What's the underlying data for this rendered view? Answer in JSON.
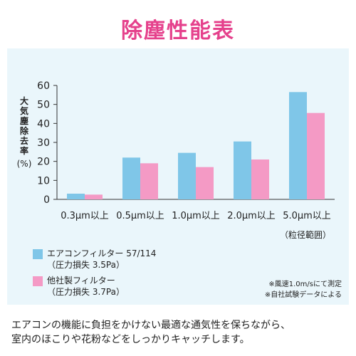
{
  "title": "除塵性能表",
  "ylabel": "大気塵除去率(%)",
  "legend": {
    "series1_line1": "エアコンフィルター 57/114",
    "series1_line2": "（圧力損失 3.5Pa）",
    "series2_line1": "他社製フィルター",
    "series2_line2": "（圧力損失 3.7Pa）"
  },
  "notes": {
    "note1": "※風速1.0m/sにて測定",
    "note2": "※自社試験データによる"
  },
  "caption_line1": "エアコンの機能に負担をかけない最適な通気性を保ちながら、",
  "caption_line2": "室内のほこりや花粉などをしっかりキャッチします。",
  "colors": {
    "series1": "#7fc6e8",
    "series2": "#f49ac5",
    "title": "#e5418c",
    "panel": "#eaf6fb"
  },
  "chart_data": {
    "type": "bar",
    "title": "除塵性能表",
    "ylabel": "大気塵除去率(%)",
    "xlabel_note": "（粒径範囲）",
    "categories": [
      "0.3μm以上",
      "0.5μm以上",
      "1.0μm以上",
      "2.0μm以上",
      "5.0μm以上"
    ],
    "series": [
      {
        "name": "エアコンフィルター 57/114（圧力損失 3.5Pa）",
        "values": [
          3,
          22,
          24.5,
          30.5,
          56.5
        ]
      },
      {
        "name": "他社製フィルター（圧力損失 3.7Pa）",
        "values": [
          2.5,
          19,
          17,
          21,
          45.5
        ]
      }
    ],
    "ylim": [
      0,
      60
    ],
    "yticks": [
      0,
      10,
      20,
      30,
      40,
      50,
      60
    ],
    "grid": false,
    "legend_position": "bottom-left"
  }
}
